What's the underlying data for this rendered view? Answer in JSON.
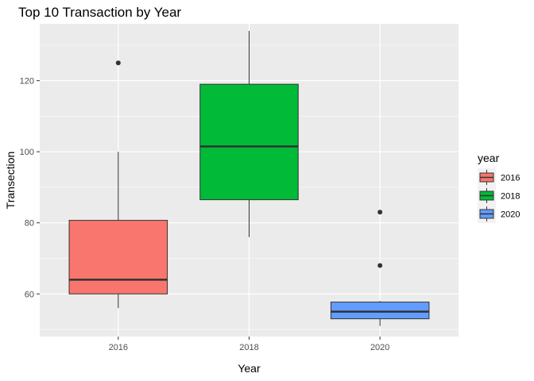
{
  "chart_data": {
    "type": "boxplot",
    "title": "Top 10 Transaction by Year",
    "xlabel": "Year",
    "ylabel": "Transection",
    "categories": [
      "2016",
      "2018",
      "2020"
    ],
    "ylim": [
      48,
      136
    ],
    "y_ticks": [
      60,
      80,
      100,
      120
    ],
    "grid": true,
    "legend": {
      "title": "year",
      "placement": "right",
      "entries": [
        "2016",
        "2018",
        "2020"
      ]
    },
    "colors": {
      "2016": "#F8766D",
      "2018": "#00BA38",
      "2020": "#619CFF",
      "panel": "#EBEBEB",
      "grid": "#FFFFFF",
      "outline": "#333333"
    },
    "boxes": [
      {
        "name": "2016",
        "whisker_low": 56,
        "q1": 60,
        "median": 64,
        "q3": 80.7,
        "whisker_high": 100,
        "outliers": [
          125
        ]
      },
      {
        "name": "2018",
        "whisker_low": 76,
        "q1": 86.5,
        "median": 101.5,
        "q3": 119,
        "whisker_high": 134,
        "outliers": []
      },
      {
        "name": "2020",
        "whisker_low": 51,
        "q1": 53,
        "median": 55,
        "q3": 57.7,
        "whisker_high": 58,
        "outliers": [
          68,
          83
        ]
      }
    ]
  }
}
